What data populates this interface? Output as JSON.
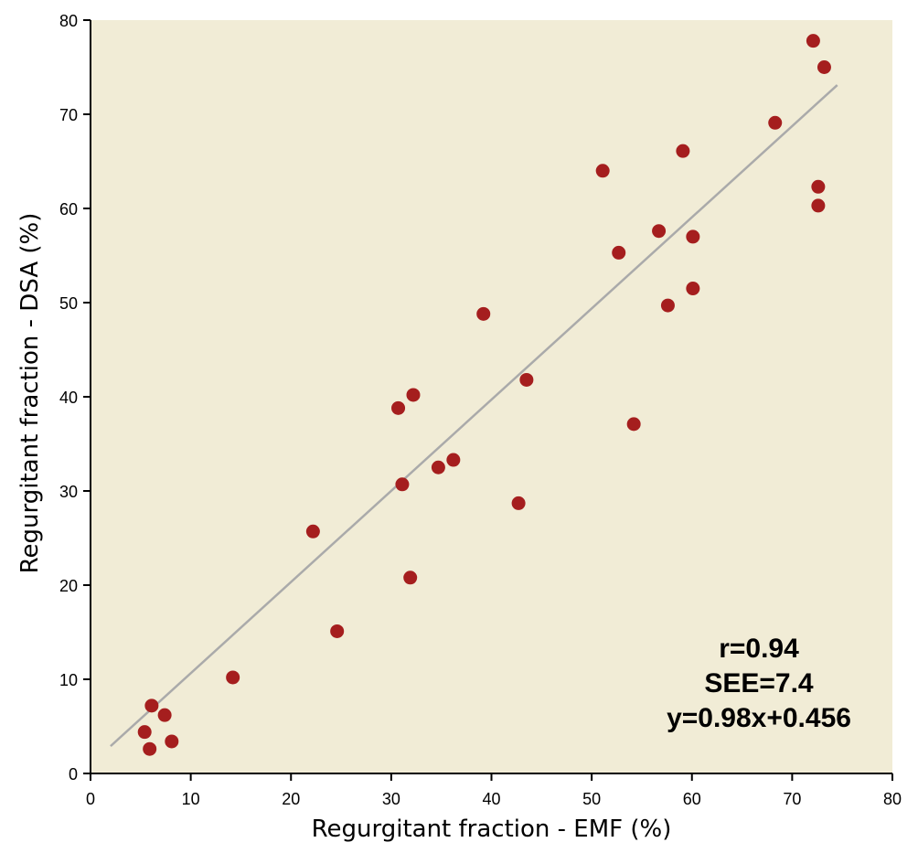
{
  "chart_data": {
    "type": "scatter",
    "title": "",
    "xlabel": "Regurgitant fraction - EMF (%)",
    "ylabel": "Regurgitant fraction - DSA (%)",
    "xlim": [
      0,
      80
    ],
    "ylim": [
      0,
      80
    ],
    "xticks": [
      0,
      10,
      20,
      30,
      40,
      50,
      60,
      70,
      80
    ],
    "yticks": [
      0,
      10,
      20,
      30,
      40,
      50,
      60,
      70,
      80
    ],
    "grid": false,
    "colors": {
      "background": "#F1ECD6",
      "points": "#A51E1E",
      "fit_line": "#AAAAAA",
      "axis": "#000000"
    },
    "series": [
      {
        "x": [
          5.4,
          5.9,
          6.1,
          7.4,
          8.1,
          14.2,
          22.2,
          24.6,
          30.7,
          31.1,
          31.9,
          32.2,
          34.7,
          36.2,
          39.2,
          42.7,
          43.5,
          51.1,
          52.7,
          54.2,
          56.7,
          57.6,
          59.1,
          60.1,
          60.1,
          68.3,
          72.1,
          72.6,
          72.6,
          73.2
        ],
        "y": [
          4.4,
          2.6,
          7.2,
          6.2,
          3.4,
          10.2,
          25.7,
          15.1,
          38.8,
          30.7,
          20.8,
          40.2,
          32.5,
          33.3,
          48.8,
          28.7,
          41.8,
          64.0,
          55.3,
          37.1,
          57.6,
          49.7,
          66.1,
          57.0,
          51.5,
          69.1,
          77.8,
          60.3,
          62.3,
          75.0
        ]
      }
    ],
    "fit_line": {
      "x": [
        2,
        74.5
      ],
      "y": [
        2.9,
        73.1
      ]
    },
    "annotations": [
      "r=0.94",
      "SEE=7.4",
      "y=0.98x+0.456"
    ]
  }
}
